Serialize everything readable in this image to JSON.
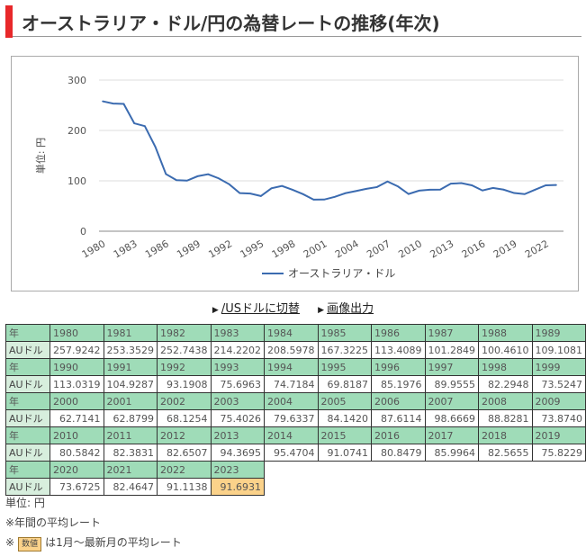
{
  "title": "オーストラリア・ドル/円の為替レートの推移(年次)",
  "links": {
    "switch": "/USドルに切替",
    "export": "画像出力"
  },
  "table": {
    "year_label": "年",
    "row_label": "AUドル",
    "rows": [
      {
        "years": [
          "1980",
          "1981",
          "1982",
          "1983",
          "1984",
          "1985",
          "1986",
          "1987",
          "1988",
          "1989"
        ],
        "values": [
          "257.9242",
          "253.3529",
          "252.7438",
          "214.2202",
          "208.5978",
          "167.3225",
          "113.4089",
          "101.2849",
          "100.4610",
          "109.1081"
        ]
      },
      {
        "years": [
          "1990",
          "1991",
          "1992",
          "1993",
          "1994",
          "1995",
          "1996",
          "1997",
          "1998",
          "1999"
        ],
        "values": [
          "113.0319",
          "104.9287",
          "93.1908",
          "75.6963",
          "74.7184",
          "69.8187",
          "85.1976",
          "89.9555",
          "82.2948",
          "73.5247"
        ]
      },
      {
        "years": [
          "2000",
          "2001",
          "2002",
          "2003",
          "2004",
          "2005",
          "2006",
          "2007",
          "2008",
          "2009"
        ],
        "values": [
          "62.7141",
          "62.8799",
          "68.1254",
          "75.4026",
          "79.6337",
          "84.1420",
          "87.6114",
          "98.6669",
          "88.8281",
          "73.8740"
        ]
      },
      {
        "years": [
          "2010",
          "2011",
          "2012",
          "2013",
          "2014",
          "2015",
          "2016",
          "2017",
          "2018",
          "2019"
        ],
        "values": [
          "80.5842",
          "82.3831",
          "82.6507",
          "94.3695",
          "95.4704",
          "91.0741",
          "80.8479",
          "85.9964",
          "82.5655",
          "75.8229"
        ]
      },
      {
        "years": [
          "2020",
          "2021",
          "2022",
          "2023"
        ],
        "values": [
          "73.6725",
          "82.4647",
          "91.1138",
          "91.6931"
        ]
      }
    ],
    "partial_year": "2023"
  },
  "notes": {
    "unit": "単位: 円",
    "avg": "※年間の平均レート",
    "mark": "※",
    "badge": "数値",
    "partial": "は1月～最新月の平均レート"
  },
  "chart_data": {
    "type": "line",
    "title": "",
    "ylabel": "単位: 円",
    "xlabel": "",
    "ylim": [
      0,
      300
    ],
    "yticks": [
      0,
      100,
      200,
      300
    ],
    "xticks": [
      "1980",
      "1983",
      "1986",
      "1989",
      "1992",
      "1995",
      "1998",
      "2001",
      "2004",
      "2007",
      "2010",
      "2013",
      "2016",
      "2019",
      "2022"
    ],
    "x_start": 1980,
    "grid": true,
    "legend": "bottom",
    "line_color": "#3b6bb0",
    "series": [
      {
        "name": "オーストラリア・ドル",
        "values": [
          257.9242,
          253.3529,
          252.7438,
          214.2202,
          208.5978,
          167.3225,
          113.4089,
          101.2849,
          100.461,
          109.1081,
          113.0319,
          104.9287,
          93.1908,
          75.6963,
          74.7184,
          69.8187,
          85.1976,
          89.9555,
          82.2948,
          73.5247,
          62.7141,
          62.8799,
          68.1254,
          75.4026,
          79.6337,
          84.142,
          87.6114,
          98.6669,
          88.8281,
          73.874,
          80.5842,
          82.3831,
          82.6507,
          94.3695,
          95.4704,
          91.0741,
          80.8479,
          85.9964,
          82.5655,
          75.8229,
          73.6725,
          82.4647,
          91.1138,
          91.6931
        ]
      }
    ]
  }
}
